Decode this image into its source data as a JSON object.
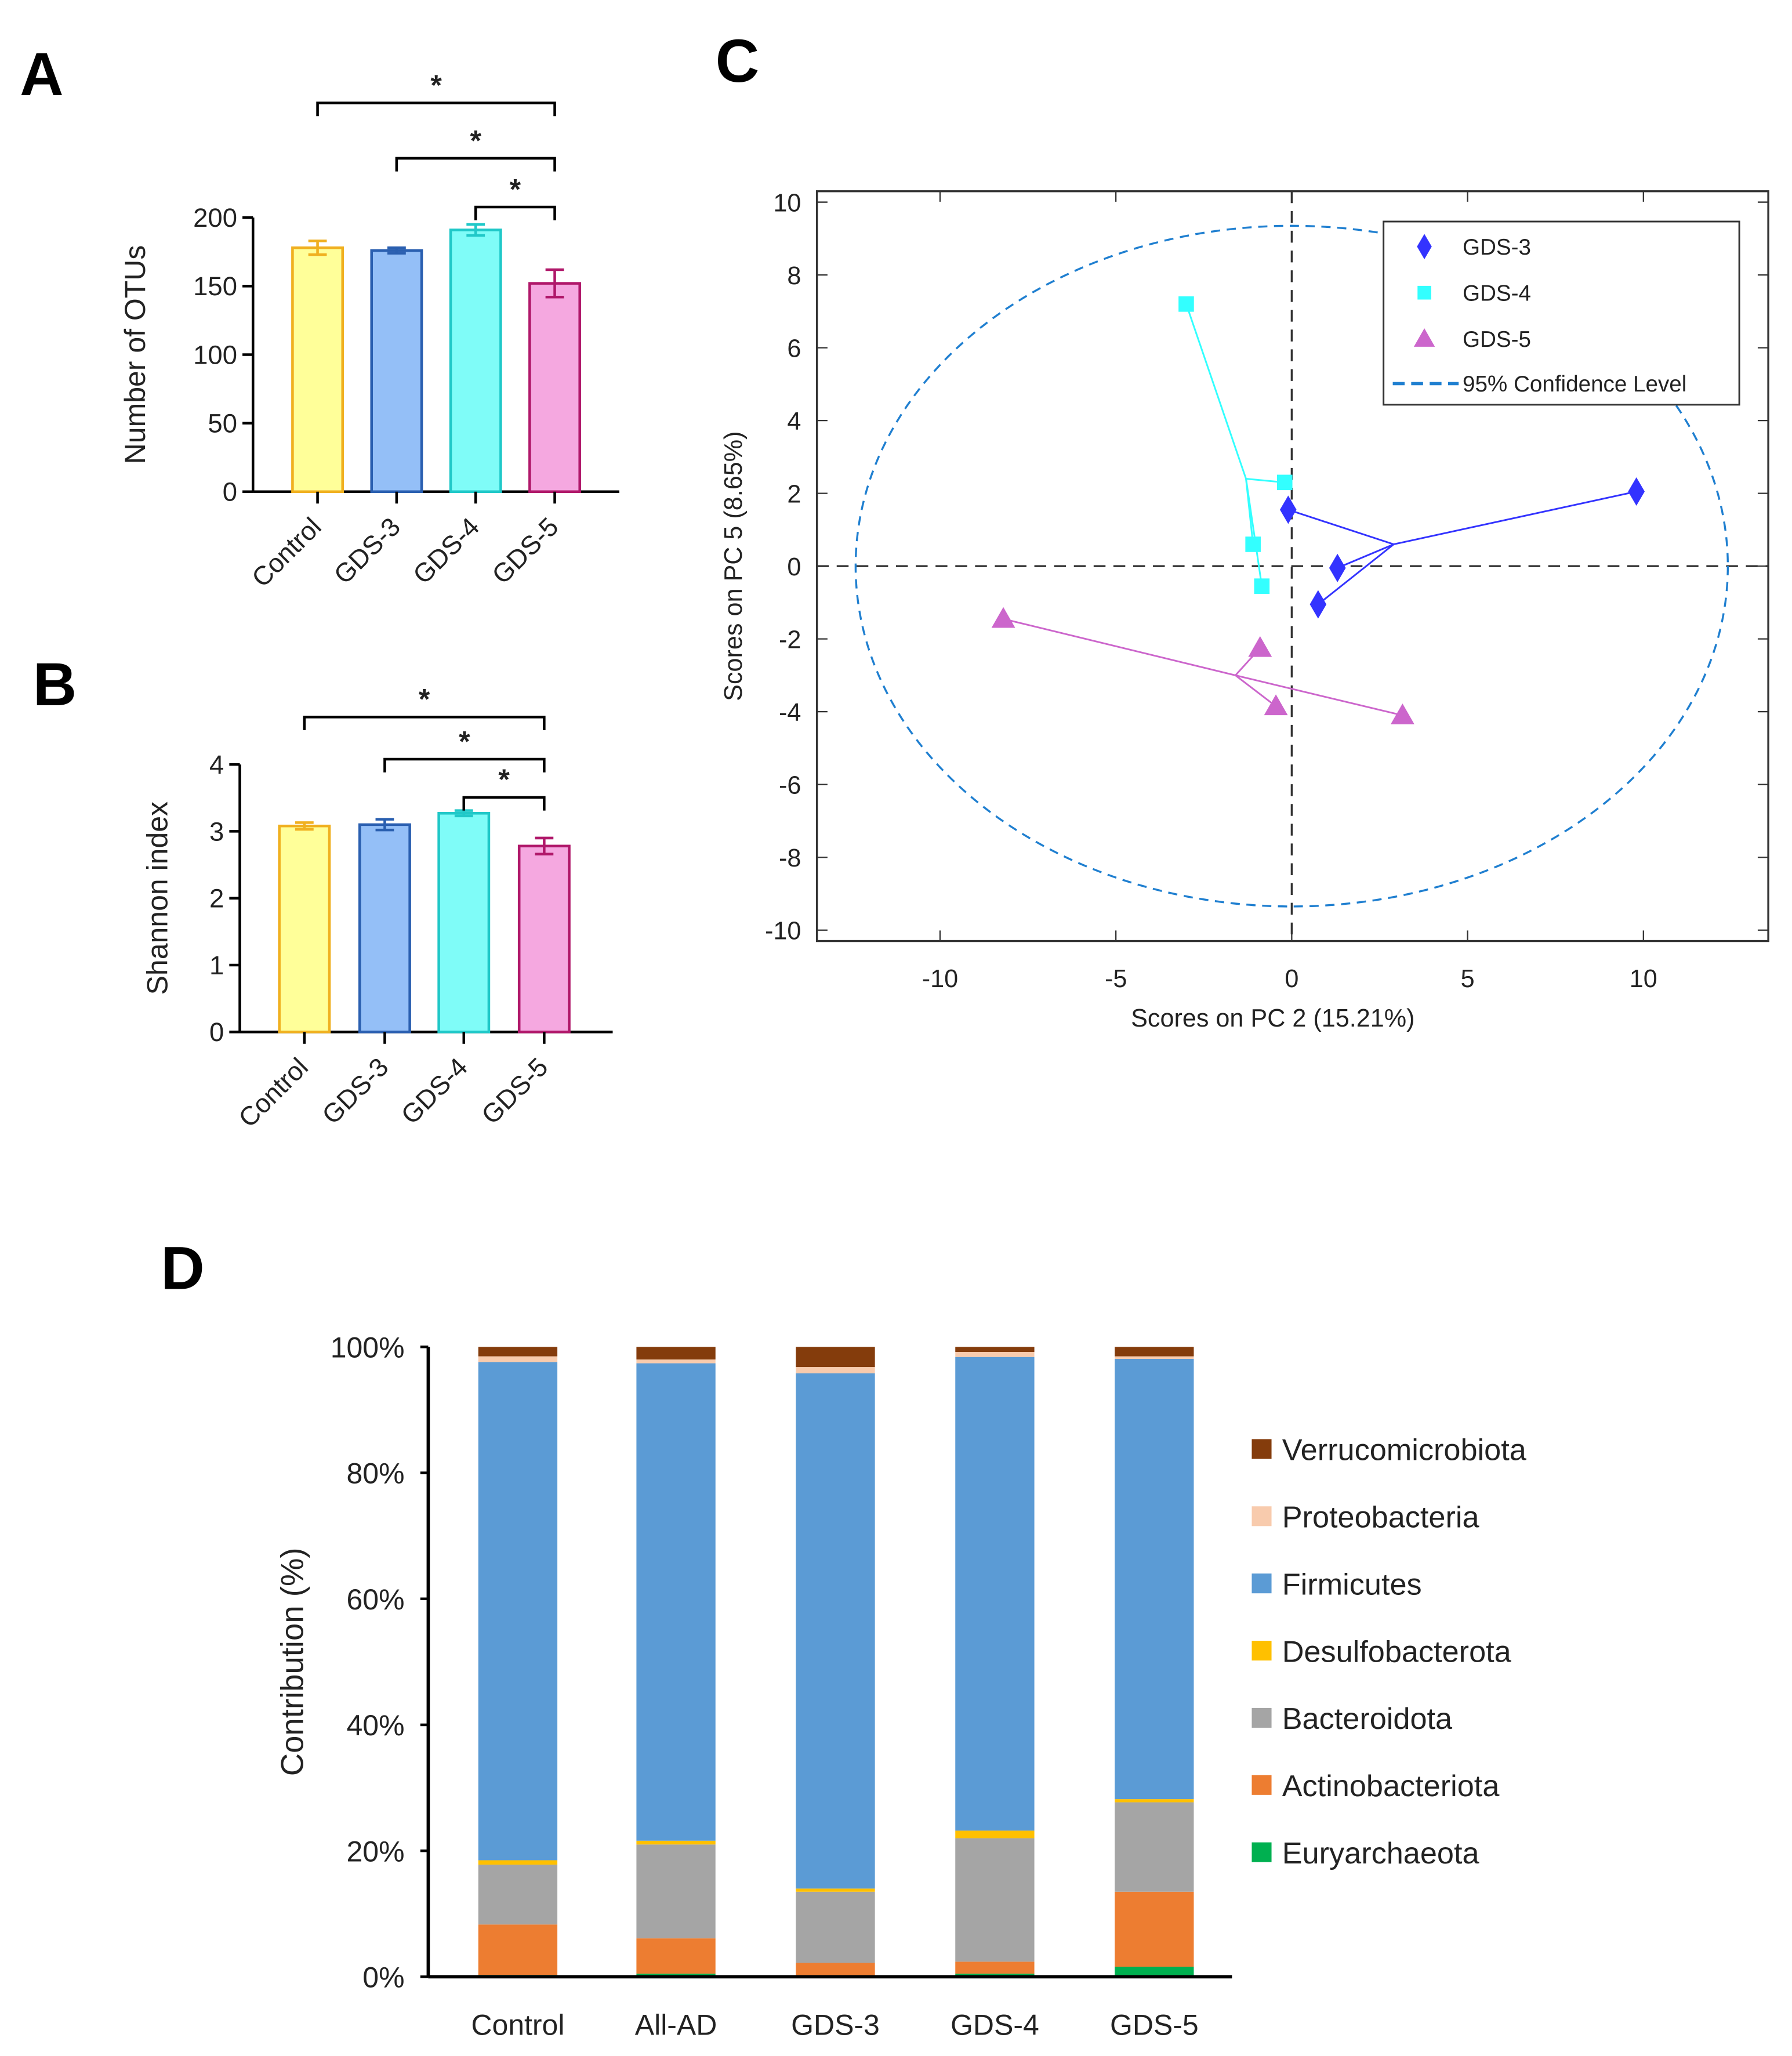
{
  "chart_data": [
    {
      "panel": "A",
      "type": "bar",
      "ylabel": "Number of OTUs",
      "ylim": [
        0,
        200
      ],
      "yticks": [
        0,
        50,
        100,
        150,
        200
      ],
      "categories": [
        "Control",
        "GDS-3",
        "GDS-4",
        "GDS-5"
      ],
      "values": [
        178,
        176,
        191,
        152
      ],
      "errors": [
        5,
        2,
        4,
        10
      ],
      "significance": [
        {
          "from": "Control",
          "to": "GDS-5",
          "label": "*"
        },
        {
          "from": "GDS-3",
          "to": "GDS-5",
          "label": "*"
        },
        {
          "from": "GDS-4",
          "to": "GDS-5",
          "label": "*"
        }
      ]
    },
    {
      "panel": "B",
      "type": "bar",
      "ylabel": "Shannon index",
      "ylim": [
        0,
        4
      ],
      "yticks": [
        0,
        1,
        2,
        3,
        4
      ],
      "categories": [
        "Control",
        "GDS-3",
        "GDS-4",
        "GDS-5"
      ],
      "values": [
        3.08,
        3.1,
        3.27,
        2.78
      ],
      "errors": [
        0.05,
        0.08,
        0.04,
        0.12
      ],
      "significance": [
        {
          "from": "Control",
          "to": "GDS-5",
          "label": "*"
        },
        {
          "from": "GDS-3",
          "to": "GDS-5",
          "label": "*"
        },
        {
          "from": "GDS-4",
          "to": "GDS-5",
          "label": "*"
        }
      ]
    },
    {
      "panel": "C",
      "type": "scatter",
      "xlabel": "Scores on PC 2 (15.21%)",
      "ylabel": "Scores on PC 5 (8.65%)",
      "xlim": [
        -13.5,
        13.55
      ],
      "ylim": [
        -10.3,
        10.3
      ],
      "xticks": [
        -10,
        -5,
        0,
        5,
        10
      ],
      "yticks": [
        10,
        8,
        6,
        4,
        2,
        0,
        -2,
        -4,
        -6,
        -8,
        -10
      ],
      "series": [
        {
          "name": "GDS-3",
          "marker": "diamond",
          "color": "#3333ff",
          "centroid": [
            2.9,
            0.6
          ],
          "points": [
            [
              -0.1,
              1.55
            ],
            [
              1.3,
              -0.05
            ],
            [
              0.75,
              -1.05
            ],
            [
              9.8,
              2.05
            ]
          ]
        },
        {
          "name": "GDS-4",
          "marker": "square",
          "color": "#33ffff",
          "centroid": [
            -1.3,
            2.4
          ],
          "points": [
            [
              -3.0,
              7.2
            ],
            [
              -0.2,
              2.3
            ],
            [
              -1.1,
              0.6
            ],
            [
              -0.85,
              -0.55
            ]
          ]
        },
        {
          "name": "GDS-5",
          "marker": "triangle",
          "color": "#cc66cc",
          "centroid": [
            -1.6,
            -3.0
          ],
          "points": [
            [
              -8.2,
              -1.45
            ],
            [
              -0.9,
              -2.25
            ],
            [
              -0.45,
              -3.85
            ],
            [
              3.15,
              -4.1
            ]
          ]
        }
      ],
      "ellipse": {
        "label": "95% Confidence Level",
        "center": [
          0,
          0
        ],
        "rx": 12.4,
        "ry": 9.35,
        "color": "#1f7fd0"
      },
      "legend_position": "top-right"
    },
    {
      "panel": "D",
      "type": "bar",
      "stacked": true,
      "ylabel": "Contribution (%)",
      "ylim": [
        0,
        100
      ],
      "yticks": [
        "0%",
        "20%",
        "40%",
        "60%",
        "80%",
        "100%"
      ],
      "categories": [
        "Control",
        "All-AD",
        "GDS-3",
        "GDS-4",
        "GDS-5"
      ],
      "series": [
        {
          "name": "Euryarchaeota",
          "color": "#00b050",
          "values": [
            0.3,
            0.5,
            0.0,
            0.5,
            1.6
          ]
        },
        {
          "name": "Actinobacteriota",
          "color": "#ed7d31",
          "values": [
            8.0,
            5.6,
            2.2,
            1.9,
            11.9
          ]
        },
        {
          "name": "Bacteroidota",
          "color": "#a5a5a5",
          "values": [
            9.5,
            14.9,
            11.3,
            19.6,
            14.2
          ]
        },
        {
          "name": "Desulfobacterota",
          "color": "#ffc000",
          "values": [
            0.7,
            0.6,
            0.5,
            1.2,
            0.5
          ]
        },
        {
          "name": "Firmicutes",
          "color": "#5b9bd5",
          "values": [
            79.1,
            75.8,
            81.8,
            75.2,
            69.9
          ]
        },
        {
          "name": "Proteobacteria",
          "color": "#f8cbad",
          "values": [
            0.9,
            0.6,
            1.0,
            0.8,
            0.4
          ]
        },
        {
          "name": "Verrucomicrobiota",
          "color": "#843c0c",
          "values": [
            1.5,
            2.0,
            3.2,
            0.8,
            1.5
          ]
        }
      ],
      "legend_position": "right"
    }
  ],
  "bar_colors": [
    {
      "fill": "#ffff99",
      "stroke": "#f0b020"
    },
    {
      "fill": "#94bff7",
      "stroke": "#2a5fb0"
    },
    {
      "fill": "#7ffcf8",
      "stroke": "#20c8c8"
    },
    {
      "fill": "#f5a8e0",
      "stroke": "#b0186a"
    }
  ]
}
